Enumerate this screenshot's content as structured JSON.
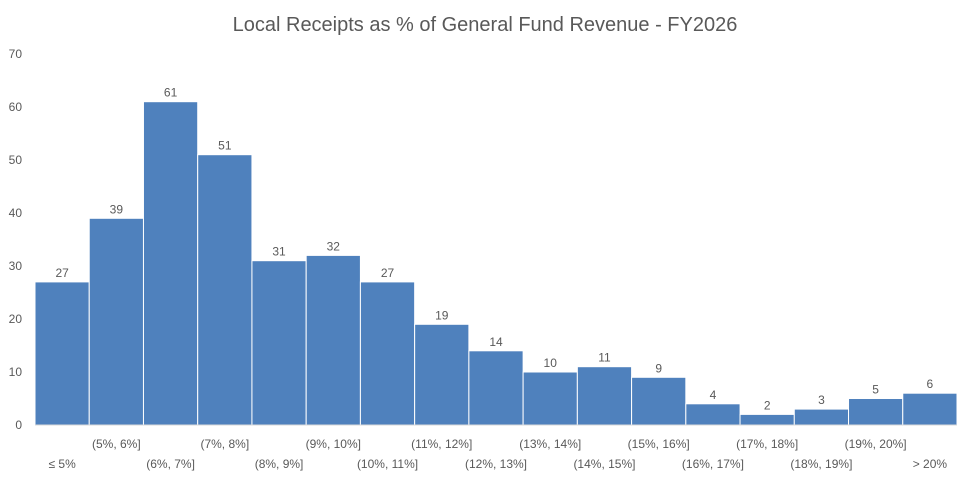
{
  "chart_data": {
    "type": "bar",
    "title": "Local Receipts as % of General Fund Revenue - FY2026",
    "xlabel": "",
    "ylabel": "",
    "ylim": [
      0,
      70
    ],
    "yticks": [
      0,
      10,
      20,
      30,
      40,
      50,
      60,
      70
    ],
    "grid": false,
    "legend": "none",
    "bar_color": "#4f81bd",
    "categories": [
      "≤ 5%",
      "(5%, 6%]",
      "(6%, 7%]",
      "(7%, 8%]",
      "(8%, 9%]",
      "(9%, 10%]",
      "(10%, 11%]",
      "(11%, 12%]",
      "(12%, 13%]",
      "(13%, 14%]",
      "(14%, 15%]",
      "(15%, 16%]",
      "(16%, 17%]",
      "(17%, 18%]",
      "(18%, 19%]",
      "(19%, 20%]",
      "> 20%"
    ],
    "values": [
      27,
      39,
      61,
      51,
      31,
      32,
      27,
      19,
      14,
      10,
      11,
      9,
      4,
      2,
      3,
      5,
      6
    ]
  }
}
